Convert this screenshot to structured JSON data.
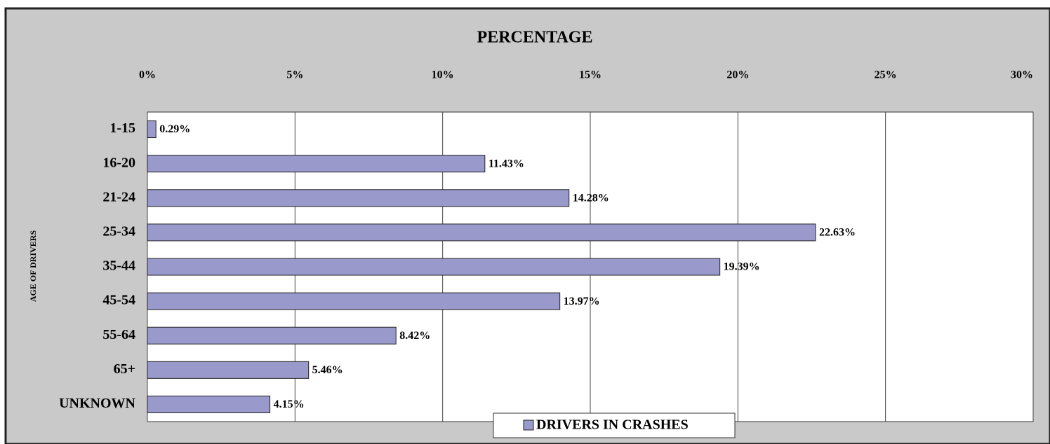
{
  "chart_data": {
    "type": "hbar",
    "title": "PERCENTAGE",
    "y_label": "AGE OF DRIVERS",
    "categories": [
      "1-15",
      "16-20",
      "21-24",
      "25-34",
      "35-44",
      "45-54",
      "55-64",
      "65+",
      "UNKNOWN"
    ],
    "series": [
      {
        "name": "DRIVERS IN CRASHES",
        "color": "#9999cc",
        "values": [
          0.29,
          11.43,
          14.28,
          22.63,
          19.39,
          13.97,
          8.42,
          5.46,
          4.15
        ],
        "value_labels": [
          "0.29%",
          "11.43%",
          "14.28%",
          "22.63%",
          "19.39%",
          "13.97%",
          "8.42%",
          "5.46%",
          "4.15%"
        ]
      }
    ],
    "xlim": [
      0,
      30
    ],
    "xticks": [
      {
        "value": 0,
        "label": "0%"
      },
      {
        "value": 5,
        "label": "5%"
      },
      {
        "value": 10,
        "label": "10%"
      },
      {
        "value": 15,
        "label": "15%"
      },
      {
        "value": 20,
        "label": "20%"
      },
      {
        "value": 25,
        "label": "25%"
      },
      {
        "value": 30,
        "label": "30%"
      }
    ],
    "grid": true,
    "legend": "bottom"
  }
}
